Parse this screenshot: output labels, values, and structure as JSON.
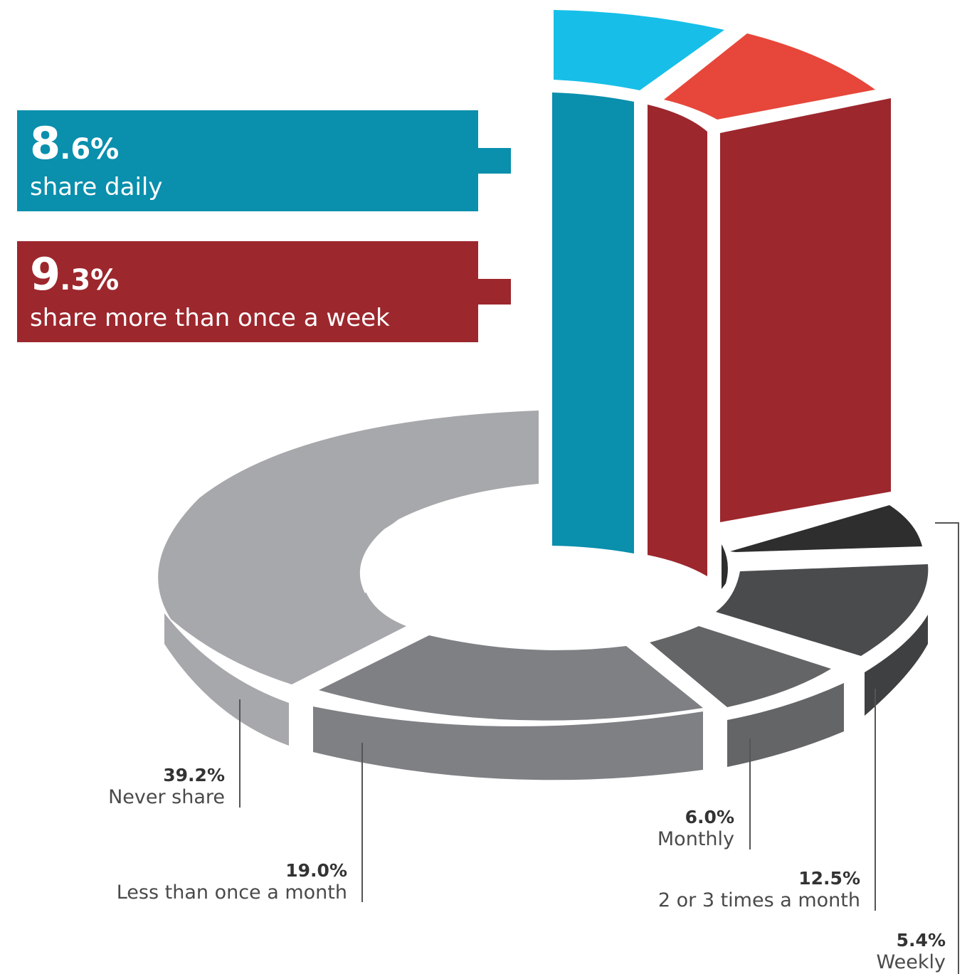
{
  "chart_data": {
    "type": "pie",
    "variant": "3d-donut-with-raised-slices",
    "slices": [
      {
        "label": "share daily",
        "value": 8.6,
        "color": "#0a8fad",
        "top_color": "#17bfe8",
        "raised": true
      },
      {
        "label": "share more than once a week",
        "value": 9.3,
        "color": "#9c272d",
        "top_color": "#e6473a",
        "raised": true
      },
      {
        "label": "Weekly",
        "value": 5.4,
        "color": "#2e2e2e",
        "raised": false
      },
      {
        "label": "2 or 3 times a month",
        "value": 12.5,
        "color": "#4a4b4d",
        "raised": false
      },
      {
        "label": "Monthly",
        "value": 6.0,
        "color": "#646567",
        "raised": false
      },
      {
        "label": "Less than once a month",
        "value": 19.0,
        "color": "#7f8084",
        "raised": false
      },
      {
        "label": "Never share",
        "value": 39.2,
        "color": "#a7a8ab",
        "raised": false
      }
    ]
  },
  "callouts": {
    "daily": {
      "big": "8",
      "big_decimal": ".6%",
      "text": "share daily"
    },
    "weekly_plus": {
      "big": "9",
      "big_decimal": ".3%",
      "text": "share more than once a week"
    }
  },
  "labels": {
    "never": {
      "pct": "39.2%",
      "name": "Never share"
    },
    "less_monthly": {
      "pct": "19.0%",
      "name": "Less than once a month"
    },
    "monthly": {
      "pct": "6.0%",
      "name": "Monthly"
    },
    "two_three": {
      "pct": "12.5%",
      "name": "2 or 3 times a month"
    },
    "weekly": {
      "pct": "5.4%",
      "name": "Weekly"
    }
  }
}
